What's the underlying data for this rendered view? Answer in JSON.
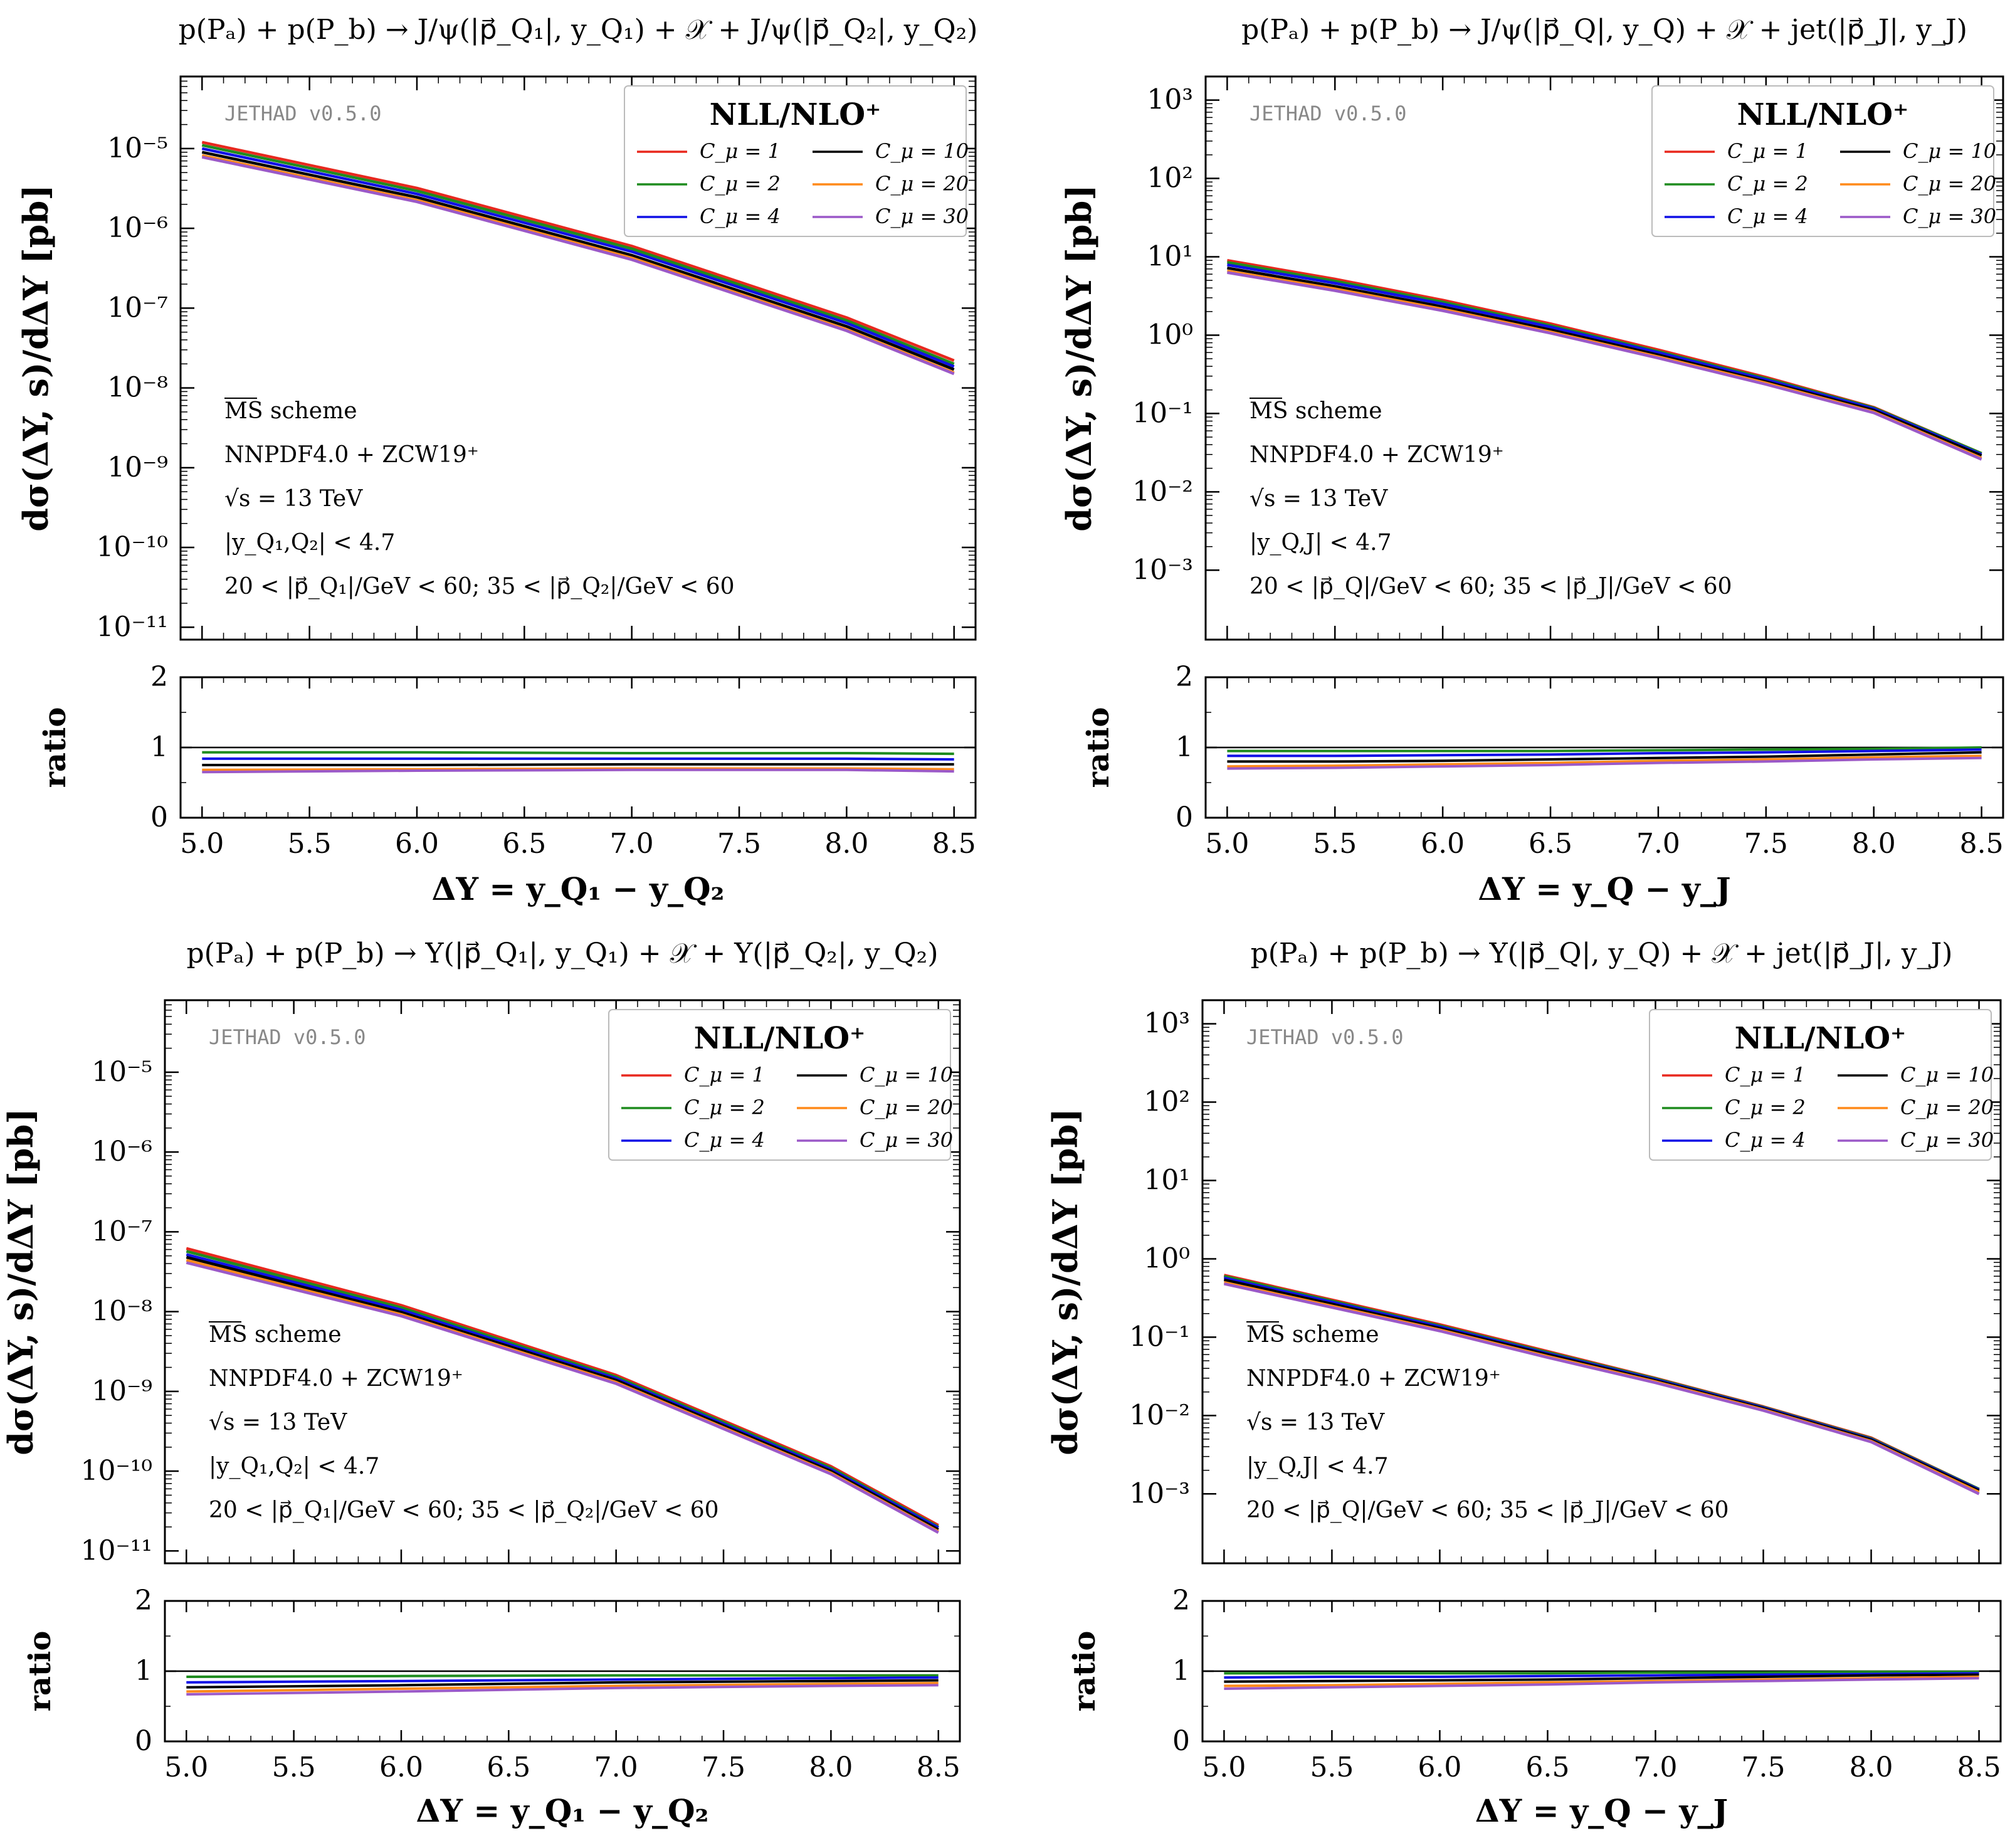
{
  "legend_title": "NLL/NLO⁺",
  "watermark": "JETHAD v0.5.0",
  "colors": {
    "Cmu=1": "#e8281e",
    "Cmu=2": "#1f8c1f",
    "Cmu=4": "#1010e6",
    "Cmu=10": "#000000",
    "Cmu=20": "#ff8a1a",
    "Cmu=30": "#9b59c8"
  },
  "chart_data": [
    {
      "type": "line",
      "title": "p(Pₐ) + p(P_b) → J/ψ(|p⃗_Q₁|, y_Q₁) + 𝒳 + J/ψ(|p⃗_Q₂|, y_Q₂)",
      "xlabel": "ΔY = y_Q₁ − y_Q₂",
      "ylabel": "dσ(ΔY, s)/dΔY [pb]",
      "yscale": "log",
      "ylim": [
        7e-12,
        8e-05
      ],
      "ytick_labels": [
        "10⁻¹¹",
        "10⁻¹⁰",
        "10⁻⁹",
        "10⁻⁸",
        "10⁻⁷",
        "10⁻⁶",
        "10⁻⁵"
      ],
      "xlim": [
        4.9,
        8.6
      ],
      "xticks": [
        "5.0",
        "5.5",
        "6.0",
        "6.5",
        "7.0",
        "7.5",
        "8.0",
        "8.5"
      ],
      "x": [
        5.0,
        6.0,
        7.0,
        8.0,
        8.5
      ],
      "legend_position": "top-right",
      "annotations": [
        "MS scheme",
        "NNPDF4.0 + ZCW19⁺",
        "√s = 13 TeV",
        "|y_Q₁,Q₂| < 4.7",
        "20 < |p⃗_Q₁|/GeV < 60;  35 < |p⃗_Q₂|/GeV < 60"
      ],
      "series": [
        {
          "name": "C_μ = 1",
          "values": [
            1.2e-05,
            3.2e-06,
            6e-07,
            7.6e-08,
            2.2e-08
          ]
        },
        {
          "name": "C_μ = 2",
          "values": [
            1.1e-05,
            2.95e-06,
            5.55e-07,
            7e-08,
            2e-08
          ]
        },
        {
          "name": "C_μ = 4",
          "values": [
            1e-05,
            2.7e-06,
            5.1e-07,
            6.5e-08,
            1.85e-08
          ]
        },
        {
          "name": "C_μ = 10",
          "values": [
            9e-06,
            2.45e-06,
            4.6e-07,
            5.9e-08,
            1.7e-08
          ]
        },
        {
          "name": "C_μ = 20",
          "values": [
            8.2e-06,
            2.25e-06,
            4.25e-07,
            5.4e-08,
            1.55e-08
          ]
        },
        {
          "name": "C_μ = 30",
          "values": [
            7.8e-06,
            2.15e-06,
            4.05e-07,
            5.2e-08,
            1.5e-08
          ]
        }
      ],
      "ratio": {
        "ylabel": "ratio",
        "ylim": [
          0,
          2
        ],
        "ytick_labels": [
          "0",
          "1",
          "2"
        ],
        "series": [
          {
            "name": "C_μ = 1",
            "values": [
              1.0,
              1.0,
              1.0,
              1.0,
              1.0
            ]
          },
          {
            "name": "C_μ = 2",
            "values": [
              0.93,
              0.93,
              0.92,
              0.92,
              0.91
            ]
          },
          {
            "name": "C_μ = 4",
            "values": [
              0.84,
              0.84,
              0.84,
              0.84,
              0.83
            ]
          },
          {
            "name": "C_μ = 10",
            "values": [
              0.75,
              0.75,
              0.76,
              0.76,
              0.76
            ]
          },
          {
            "name": "C_μ = 20",
            "values": [
              0.68,
              0.69,
              0.7,
              0.7,
              0.69
            ]
          },
          {
            "name": "C_μ = 30",
            "values": [
              0.65,
              0.67,
              0.68,
              0.68,
              0.66
            ]
          }
        ]
      }
    },
    {
      "type": "line",
      "title": "p(Pₐ) + p(P_b) → J/ψ(|p⃗_Q|, y_Q) + 𝒳 + jet(|p⃗_J|, y_J)",
      "xlabel": "ΔY = y_Q − y_J",
      "ylabel": "dσ(ΔY, s)/dΔY [pb]",
      "yscale": "log",
      "ylim": [
        0.00013,
        2000.0
      ],
      "ytick_labels": [
        "10⁻³",
        "10⁻²",
        "10⁻¹",
        "10⁰",
        "10¹",
        "10²",
        "10³"
      ],
      "xlim": [
        4.9,
        8.6
      ],
      "xticks": [
        "5.0",
        "5.5",
        "6.0",
        "6.5",
        "7.0",
        "7.5",
        "8.0",
        "8.5"
      ],
      "x": [
        5.0,
        5.5,
        6.0,
        6.5,
        7.0,
        7.5,
        8.0,
        8.5
      ],
      "legend_position": "top-right",
      "annotations": [
        "MS scheme",
        "NNPDF4.0 + ZCW19⁺",
        "√s = 13 TeV",
        "|y_Q,J| < 4.7",
        "20 < |p⃗_Q|/GeV < 60;  35 < |p⃗_J|/GeV < 60"
      ],
      "series": [
        {
          "name": "C_μ = 1",
          "values": [
            9.0,
            5.2,
            2.8,
            1.4,
            0.65,
            0.29,
            0.12,
            0.031
          ]
        },
        {
          "name": "C_μ = 2",
          "values": [
            8.5,
            4.9,
            2.65,
            1.33,
            0.62,
            0.28,
            0.118,
            0.031
          ]
        },
        {
          "name": "C_μ = 4",
          "values": [
            7.9,
            4.6,
            2.5,
            1.27,
            0.6,
            0.27,
            0.115,
            0.03
          ]
        },
        {
          "name": "C_μ = 10",
          "values": [
            7.2,
            4.2,
            2.3,
            1.17,
            0.56,
            0.255,
            0.11,
            0.029
          ]
        },
        {
          "name": "C_μ = 20",
          "values": [
            6.6,
            3.9,
            2.15,
            1.1,
            0.53,
            0.245,
            0.105,
            0.027
          ]
        },
        {
          "name": "C_μ = 30",
          "values": [
            6.3,
            3.7,
            2.05,
            1.06,
            0.51,
            0.235,
            0.102,
            0.026
          ]
        }
      ],
      "ratio": {
        "ylabel": "ratio",
        "ylim": [
          0,
          2
        ],
        "ytick_labels": [
          "0",
          "1",
          "2"
        ],
        "series": [
          {
            "name": "C_μ = 1",
            "values": [
              1.0,
              1.0,
              1.0,
              1.0,
              1.0,
              1.0,
              1.0,
              1.0
            ]
          },
          {
            "name": "C_μ = 2",
            "values": [
              0.95,
              0.95,
              0.95,
              0.95,
              0.96,
              0.97,
              0.98,
              1.0
            ]
          },
          {
            "name": "C_μ = 4",
            "values": [
              0.88,
              0.88,
              0.89,
              0.9,
              0.92,
              0.93,
              0.95,
              0.97
            ]
          },
          {
            "name": "C_μ = 10",
            "values": [
              0.8,
              0.8,
              0.81,
              0.83,
              0.85,
              0.87,
              0.9,
              0.93
            ]
          },
          {
            "name": "C_μ = 20",
            "values": [
              0.73,
              0.74,
              0.76,
              0.78,
              0.81,
              0.83,
              0.86,
              0.88
            ]
          },
          {
            "name": "C_μ = 30",
            "values": [
              0.7,
              0.71,
              0.73,
              0.75,
              0.78,
              0.8,
              0.83,
              0.85
            ]
          }
        ]
      }
    },
    {
      "type": "line",
      "title": "p(Pₐ) + p(P_b) → Υ(|p⃗_Q₁|, y_Q₁) + 𝒳 + Υ(|p⃗_Q₂|, y_Q₂)",
      "xlabel": "ΔY = y_Q₁ − y_Q₂",
      "ylabel": "dσ(ΔY, s)/dΔY [pb]",
      "yscale": "log",
      "ylim": [
        7e-12,
        8e-05
      ],
      "ytick_labels": [
        "10⁻¹¹",
        "10⁻¹⁰",
        "10⁻⁹",
        "10⁻⁸",
        "10⁻⁷",
        "10⁻⁶",
        "10⁻⁵"
      ],
      "xlim": [
        4.9,
        8.6
      ],
      "xticks": [
        "5.0",
        "5.5",
        "6.0",
        "6.5",
        "7.0",
        "7.5",
        "8.0",
        "8.5"
      ],
      "x": [
        5.0,
        6.0,
        7.0,
        8.0,
        8.5
      ],
      "legend_position": "top-right",
      "annotations": [
        "MS scheme",
        "NNPDF4.0 + ZCW19⁺",
        "√s = 13 TeV",
        "|y_Q₁,Q₂| < 4.7",
        "20 < |p⃗_Q₁|/GeV < 60;  35 < |p⃗_Q₂|/GeV < 60"
      ],
      "series": [
        {
          "name": "C_μ = 1",
          "values": [
            6.2e-08,
            1.2e-08,
            1.6e-09,
            1.15e-10,
            2.1e-11
          ]
        },
        {
          "name": "C_μ = 2",
          "values": [
            5.7e-08,
            1.12e-08,
            1.52e-09,
            1.1e-10,
            2e-11
          ]
        },
        {
          "name": "C_μ = 4",
          "values": [
            5.2e-08,
            1.05e-08,
            1.45e-09,
            1.05e-10,
            1.95e-11
          ]
        },
        {
          "name": "C_μ = 10",
          "values": [
            4.8e-08,
            9.8e-09,
            1.38e-09,
            1e-10,
            1.85e-11
          ]
        },
        {
          "name": "C_μ = 20",
          "values": [
            4.4e-08,
            9.2e-09,
            1.3e-09,
            9.5e-11,
            1.75e-11
          ]
        },
        {
          "name": "C_μ = 30",
          "values": [
            4.1e-08,
            8.8e-09,
            1.25e-09,
            9.2e-11,
            1.7e-11
          ]
        }
      ],
      "ratio": {
        "ylabel": "ratio",
        "ylim": [
          0,
          2
        ],
        "ytick_labels": [
          "0",
          "1",
          "2"
        ],
        "series": [
          {
            "name": "C_μ = 1",
            "values": [
              1.0,
              1.0,
              1.0,
              1.0,
              1.0
            ]
          },
          {
            "name": "C_μ = 2",
            "values": [
              0.92,
              0.93,
              0.94,
              0.94,
              0.94
            ]
          },
          {
            "name": "C_μ = 4",
            "values": [
              0.84,
              0.86,
              0.88,
              0.9,
              0.91
            ]
          },
          {
            "name": "C_μ = 10",
            "values": [
              0.77,
              0.8,
              0.84,
              0.86,
              0.87
            ]
          },
          {
            "name": "C_μ = 20",
            "values": [
              0.71,
              0.75,
              0.79,
              0.82,
              0.83
            ]
          },
          {
            "name": "C_μ = 30",
            "values": [
              0.67,
              0.71,
              0.76,
              0.79,
              0.8
            ]
          }
        ]
      }
    },
    {
      "type": "line",
      "title": "p(Pₐ) + p(P_b) → Υ(|p⃗_Q|, y_Q) + 𝒳 + jet(|p⃗_J|, y_J)",
      "xlabel": "ΔY = y_Q − y_J",
      "ylabel": "dσ(ΔY, s)/dΔY [pb]",
      "yscale": "log",
      "ylim": [
        0.00013,
        2000.0
      ],
      "ytick_labels": [
        "10⁻³",
        "10⁻²",
        "10⁻¹",
        "10⁰",
        "10¹",
        "10²",
        "10³"
      ],
      "xlim": [
        4.9,
        8.6
      ],
      "xticks": [
        "5.0",
        "5.5",
        "6.0",
        "6.5",
        "7.0",
        "7.5",
        "8.0",
        "8.5"
      ],
      "x": [
        5.0,
        5.5,
        6.0,
        6.5,
        7.0,
        7.5,
        8.0,
        8.5
      ],
      "legend_position": "top-right",
      "annotations": [
        "MS scheme",
        "NNPDF4.0 + ZCW19⁺",
        "√s = 13 TeV",
        "|y_Q,J| < 4.7",
        "20 < |p⃗_Q|/GeV < 60;  35 < |p⃗_J|/GeV < 60"
      ],
      "series": [
        {
          "name": "C_μ = 1",
          "values": [
            0.62,
            0.3,
            0.145,
            0.066,
            0.03,
            0.013,
            0.0052,
            0.00115
          ]
        },
        {
          "name": "C_μ = 2",
          "values": [
            0.6,
            0.29,
            0.14,
            0.064,
            0.0295,
            0.0128,
            0.0051,
            0.00115
          ]
        },
        {
          "name": "C_μ = 4",
          "values": [
            0.57,
            0.28,
            0.136,
            0.062,
            0.0288,
            0.0126,
            0.005,
            0.00113
          ]
        },
        {
          "name": "C_μ = 10",
          "values": [
            0.54,
            0.265,
            0.13,
            0.06,
            0.028,
            0.0123,
            0.0049,
            0.0011
          ]
        },
        {
          "name": "C_μ = 20",
          "values": [
            0.5,
            0.25,
            0.124,
            0.057,
            0.027,
            0.0119,
            0.0047,
            0.00105
          ]
        },
        {
          "name": "C_μ = 30",
          "values": [
            0.48,
            0.24,
            0.12,
            0.055,
            0.0262,
            0.0116,
            0.0046,
            0.001
          ]
        }
      ],
      "ratio": {
        "ylabel": "ratio",
        "ylim": [
          0,
          2
        ],
        "ytick_labels": [
          "0",
          "1",
          "2"
        ],
        "series": [
          {
            "name": "C_μ = 1",
            "values": [
              1.0,
              1.0,
              1.0,
              1.0,
              1.0,
              1.0,
              1.0,
              1.0
            ]
          },
          {
            "name": "C_μ = 2",
            "values": [
              0.97,
              0.97,
              0.97,
              0.97,
              0.98,
              0.98,
              0.99,
              0.99
            ]
          },
          {
            "name": "C_μ = 4",
            "values": [
              0.91,
              0.92,
              0.92,
              0.93,
              0.94,
              0.95,
              0.96,
              0.97
            ]
          },
          {
            "name": "C_μ = 10",
            "values": [
              0.85,
              0.86,
              0.87,
              0.88,
              0.9,
              0.92,
              0.94,
              0.95
            ]
          },
          {
            "name": "C_μ = 20",
            "values": [
              0.79,
              0.8,
              0.82,
              0.84,
              0.86,
              0.88,
              0.9,
              0.92
            ]
          },
          {
            "name": "C_μ = 30",
            "values": [
              0.75,
              0.77,
              0.79,
              0.81,
              0.84,
              0.86,
              0.88,
              0.9
            ]
          }
        ]
      }
    }
  ]
}
